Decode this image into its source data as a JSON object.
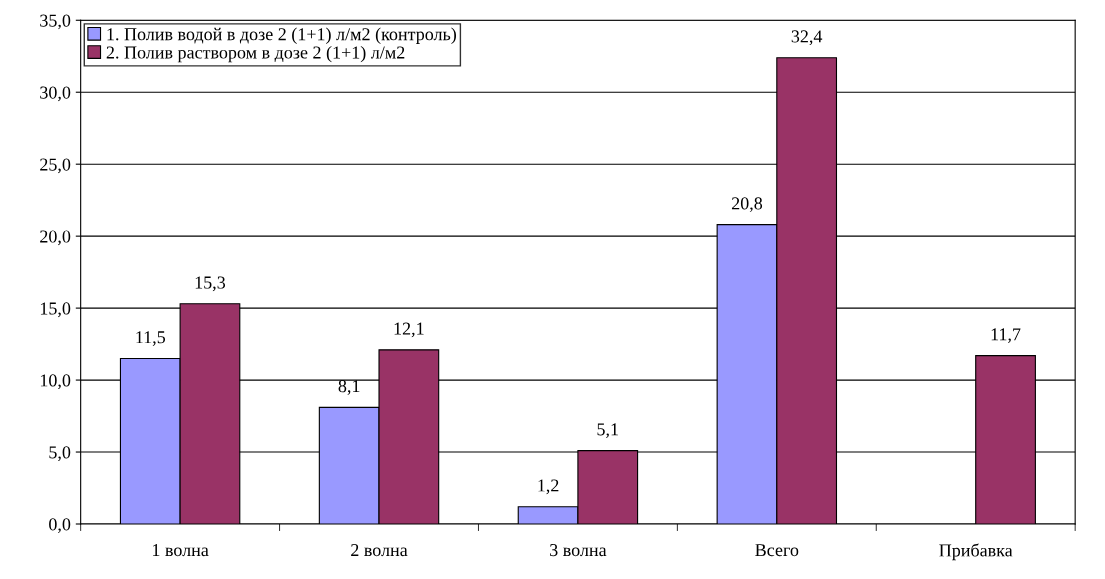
{
  "chart_data": {
    "type": "bar",
    "categories": [
      "1 волна",
      "2 волна",
      "3 волна",
      "Всего",
      "Прибавка"
    ],
    "series": [
      {
        "name": "1. Полив водой в дозе 2 (1+1) л/м2 (контроль)",
        "color": "#9999ff",
        "values": [
          11.5,
          8.1,
          1.2,
          20.8,
          null
        ],
        "value_labels": [
          "11,5",
          "8,1",
          "1,2",
          "20,8",
          null
        ]
      },
      {
        "name": "2. Полив раствором в дозе 2 (1+1) л/м2",
        "color": "#993366",
        "values": [
          15.3,
          12.1,
          5.1,
          32.4,
          11.7
        ],
        "value_labels": [
          "15,3",
          "12,1",
          "5,1",
          "32,4",
          "11,7"
        ]
      }
    ],
    "ylim": [
      0,
      35
    ],
    "yticks": [
      {
        "value": 0,
        "label": "0,0"
      },
      {
        "value": 5,
        "label": "5,0"
      },
      {
        "value": 10,
        "label": "10,0"
      },
      {
        "value": 15,
        "label": "15,0"
      },
      {
        "value": 20,
        "label": "20,0"
      },
      {
        "value": 25,
        "label": "25,0"
      },
      {
        "value": 30,
        "label": "30,0"
      },
      {
        "value": 35,
        "label": "35,0"
      }
    ],
    "grid": "y",
    "legend": "top left"
  }
}
